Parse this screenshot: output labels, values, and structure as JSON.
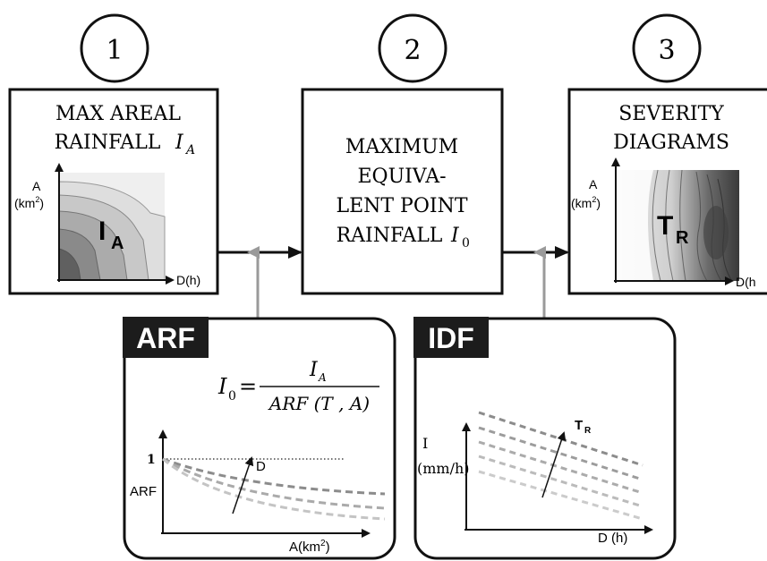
{
  "steps": [
    {
      "number": "1",
      "title_line1": "MAX AREAL",
      "title_line2": "RAINFALL",
      "title_symbol": "I",
      "title_symbol_sub": "A"
    },
    {
      "number": "2",
      "title_line1": "MAXIMUM",
      "title_line2": "EQUIVA-",
      "title_line3": "LENT POINT",
      "title_line4": "RAINFALL",
      "title_symbol": "I",
      "title_symbol_sub": "0"
    },
    {
      "number": "3",
      "title_line1": "SEVERITY",
      "title_line2": "DIAGRAMS"
    }
  ],
  "panel1_plot": {
    "y_axis_label": "A",
    "y_axis_unit": "(km",
    "y_axis_unit_sup": "2",
    "y_axis_unit_close": ")",
    "x_axis_label": "D(h)",
    "symbol": "I",
    "symbol_sub": "A"
  },
  "panel3_plot": {
    "y_axis_label": "A",
    "y_axis_unit": "(km",
    "y_axis_unit_sup": "2",
    "y_axis_unit_close": ")",
    "x_axis_label": "D(h",
    "symbol": "T",
    "symbol_sub": "R"
  },
  "arf_box": {
    "badge": "ARF",
    "formula_lhs": "I",
    "formula_lhs_sub": "0",
    "formula_eq": "=",
    "formula_num": "I",
    "formula_num_sub": "A",
    "formula_den": "ARF (T , A)",
    "y_tick": "1",
    "y_axis_label": "ARF",
    "x_axis_label": "A(km",
    "x_axis_label_sup": "2",
    "x_axis_label_close": ")",
    "arrow_label": "D"
  },
  "idf_box": {
    "badge": "IDF",
    "y_axis_label": "I",
    "y_axis_unit": "(mm/h)",
    "x_axis_label": "D (h)",
    "arrow_label": "T",
    "arrow_label_sub": "R"
  },
  "colors": {
    "stroke": "#111111",
    "badge_bg": "#1c1c1c",
    "badge_text": "#ffffff",
    "gray_arrow": "#9a9a9a",
    "dashed_dark": "#8c8c8c",
    "dashed_light": "#c4c4c4"
  }
}
